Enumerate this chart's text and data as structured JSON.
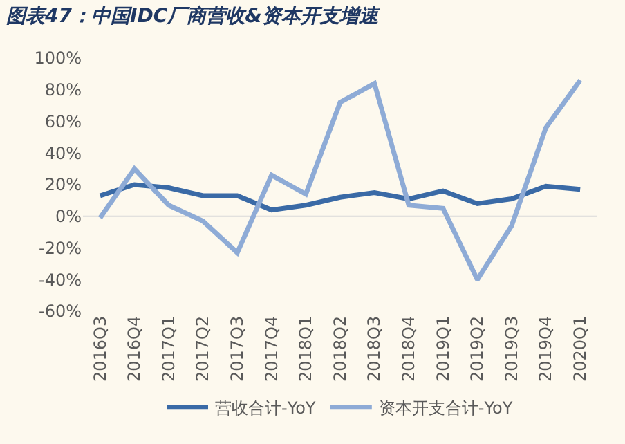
{
  "chart_data": {
    "type": "line",
    "title": "图表47：中国IDC厂商营收&资本开支增速",
    "categories": [
      "2016Q3",
      "2016Q4",
      "2017Q1",
      "2017Q2",
      "2017Q3",
      "2017Q4",
      "2018Q1",
      "2018Q2",
      "2018Q3",
      "2018Q4",
      "2019Q1",
      "2019Q2",
      "2019Q3",
      "2019Q4",
      "2020Q1"
    ],
    "series": [
      {
        "name": "营收合计-YoY",
        "color": "#3a6aa6",
        "values": [
          13,
          20,
          18,
          13,
          13,
          4,
          7,
          12,
          15,
          11,
          16,
          8,
          11,
          19,
          17
        ]
      },
      {
        "name": "资本开支合计-YoY",
        "color": "#8eabd6",
        "values": [
          -1,
          30,
          7,
          -3,
          -23,
          26,
          14,
          72,
          84,
          7,
          5,
          -40,
          -6,
          56,
          86
        ]
      }
    ],
    "ylim": [
      -60,
      100
    ],
    "yticks": [
      {
        "value": -60,
        "label": "-60%"
      },
      {
        "value": -40,
        "label": "-40%"
      },
      {
        "value": -20,
        "label": "-20%"
      },
      {
        "value": 0,
        "label": "0%"
      },
      {
        "value": 20,
        "label": "20%"
      },
      {
        "value": 40,
        "label": "40%"
      },
      {
        "value": 60,
        "label": "60%"
      },
      {
        "value": 80,
        "label": "80%"
      },
      {
        "value": 100,
        "label": "100%"
      }
    ],
    "ref_lines": [
      {
        "axis": "y",
        "value": 0,
        "color": "#d9d9d9"
      }
    ],
    "grid": false,
    "legend": "bottom",
    "marker": "none",
    "line_style": "solid"
  }
}
